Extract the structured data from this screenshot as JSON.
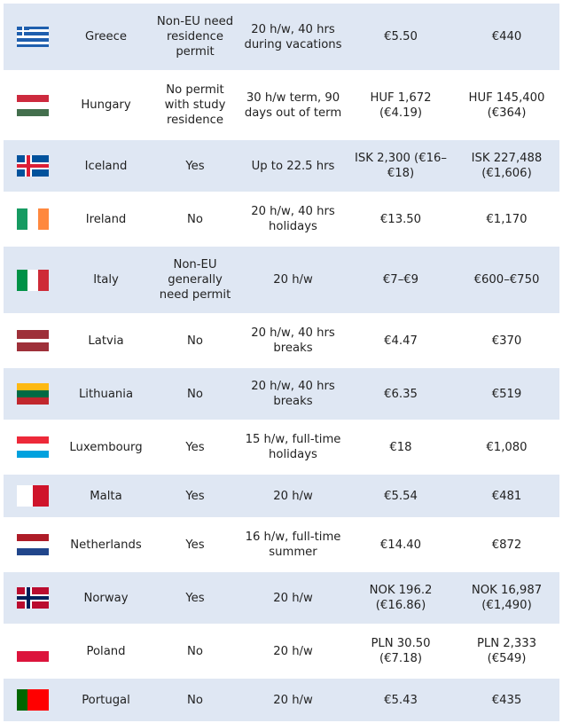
{
  "rows": [
    {
      "country": "Greece",
      "permit": "Non-EU need residence permit",
      "hours": "20 h/w, 40 hrs during vacations",
      "wage": "€5.50",
      "monthly": "€440",
      "flag": {
        "dir": "h",
        "colors": [
          "#1f5fae",
          "#ffffff",
          "#1f5fae",
          "#ffffff",
          "#1f5fae",
          "#ffffff",
          "#1f5fae"
        ]
      }
    },
    {
      "country": "Hungary",
      "permit": "No permit with study residence",
      "hours": "30 h/w term, 90 days out of term",
      "wage": "HUF 1,672 (€4.19)",
      "monthly": "HUF 145,400 (€364)",
      "flag": {
        "dir": "h",
        "colors": [
          "#cd2a3e",
          "#ffffff",
          "#436f4d"
        ]
      }
    },
    {
      "country": "Iceland",
      "permit": "Yes",
      "hours": "Up to 22.5 hrs",
      "wage": "ISK 2,300 (€16–€18)",
      "monthly": "ISK 227,488 (€1,606)",
      "flag": {
        "dir": "cross",
        "colors": [
          "#02529c",
          "#ffffff",
          "#dc1e35"
        ]
      }
    },
    {
      "country": "Ireland",
      "permit": "No",
      "hours": "20 h/w, 40 hrs holidays",
      "wage": "€13.50",
      "monthly": "€1,170",
      "flag": {
        "dir": "v",
        "colors": [
          "#169b62",
          "#ffffff",
          "#ff883e"
        ]
      }
    },
    {
      "country": "Italy",
      "permit": "Non-EU generally need permit",
      "hours": "20 h/w",
      "wage": "€7–€9",
      "monthly": "€600–€750",
      "flag": {
        "dir": "v",
        "colors": [
          "#009246",
          "#ffffff",
          "#ce2b37"
        ]
      }
    },
    {
      "country": "Latvia",
      "permit": "No",
      "hours": "20 h/w, 40 hrs breaks",
      "wage": "€4.47",
      "monthly": "€370",
      "flag": {
        "dir": "h",
        "colors": [
          "#9e3039",
          "#9e3039",
          "#ffffff",
          "#9e3039",
          "#9e3039"
        ]
      }
    },
    {
      "country": "Lithuania",
      "permit": "No",
      "hours": "20 h/w, 40 hrs breaks",
      "wage": "€6.35",
      "monthly": "€519",
      "flag": {
        "dir": "h",
        "colors": [
          "#fdb913",
          "#006a44",
          "#c1272d"
        ]
      }
    },
    {
      "country": "Luxembourg",
      "permit": "Yes",
      "hours": "15 h/w, full-time holidays",
      "wage": "€18",
      "monthly": "€1,080",
      "flag": {
        "dir": "h",
        "colors": [
          "#ed2939",
          "#ffffff",
          "#00a1de"
        ]
      }
    },
    {
      "country": "Malta",
      "permit": "Yes",
      "hours": "20 h/w",
      "wage": "€5.54",
      "monthly": "€481",
      "flag": {
        "dir": "v",
        "colors": [
          "#ffffff",
          "#cf142b"
        ]
      }
    },
    {
      "country": "Netherlands",
      "permit": "Yes",
      "hours": "16 h/w, full-time summer",
      "wage": "€14.40",
      "monthly": "€872",
      "flag": {
        "dir": "h",
        "colors": [
          "#ae1c28",
          "#ffffff",
          "#21468b"
        ]
      }
    },
    {
      "country": "Norway",
      "permit": "Yes",
      "hours": "20 h/w",
      "wage": "NOK 196.2 (€16.86)",
      "monthly": "NOK 16,987 (€1,490)",
      "flag": {
        "dir": "cross",
        "colors": [
          "#ba0c2f",
          "#ffffff",
          "#00205b"
        ]
      }
    },
    {
      "country": "Poland",
      "permit": "No",
      "hours": "20 h/w",
      "wage": "PLN 30.50 (€7.18)",
      "monthly": "PLN 2,333 (€549)",
      "flag": {
        "dir": "h",
        "colors": [
          "#ffffff",
          "#dc143c"
        ]
      }
    },
    {
      "country": "Portugal",
      "permit": "No",
      "hours": "20 h/w",
      "wage": "€5.43",
      "monthly": "€435",
      "flag": {
        "dir": "v",
        "colors": [
          "#006600",
          "#ff0000",
          "#ff0000"
        ]
      }
    }
  ]
}
